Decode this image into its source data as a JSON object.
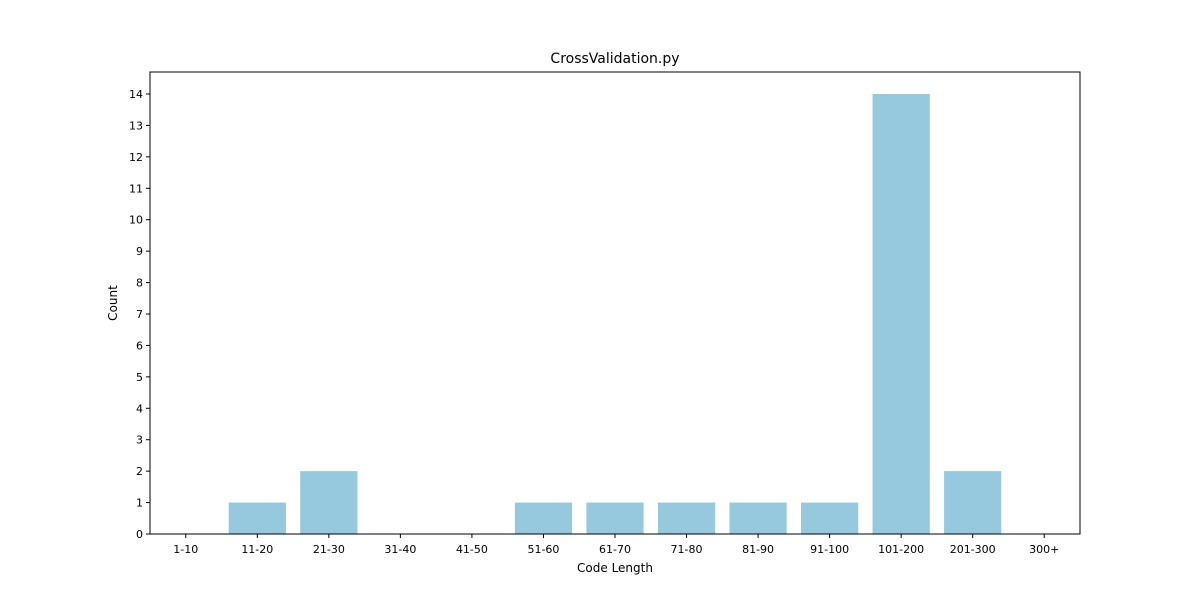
{
  "chart_data": {
    "type": "bar",
    "title": "CrossValidation.py",
    "xlabel": "Code Length",
    "ylabel": "Count",
    "categories": [
      "1-10",
      "11-20",
      "21-30",
      "31-40",
      "41-50",
      "51-60",
      "61-70",
      "71-80",
      "81-90",
      "91-100",
      "101-200",
      "201-300",
      "300+"
    ],
    "values": [
      0,
      1,
      2,
      0,
      0,
      1,
      1,
      1,
      1,
      1,
      14,
      2,
      0
    ],
    "ylim": [
      0,
      14.7
    ],
    "yticks": [
      "0",
      "1",
      "2",
      "3",
      "4",
      "5",
      "6",
      "7",
      "8",
      "9",
      "10",
      "11",
      "12",
      "13",
      "14"
    ],
    "grid": false,
    "bar_color": "#96c9dd"
  }
}
